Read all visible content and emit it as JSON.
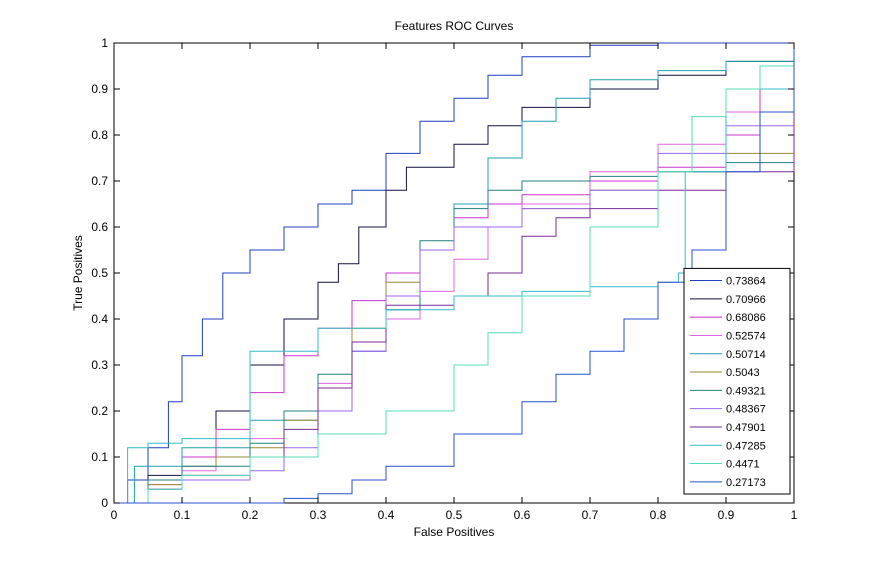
{
  "chart_data": {
    "type": "line",
    "title": "Features ROC Curves",
    "xlabel": "False Positives",
    "ylabel": "True Positives",
    "xlim": [
      0,
      1
    ],
    "ylim": [
      0,
      1
    ],
    "xticks": [
      "0",
      "0.1",
      "0.2",
      "0.3",
      "0.4",
      "0.5",
      "0.6",
      "0.7",
      "0.8",
      "0.9",
      "1"
    ],
    "yticks": [
      "0",
      "0.1",
      "0.2",
      "0.3",
      "0.4",
      "0.5",
      "0.6",
      "0.7",
      "0.8",
      "0.9",
      "1"
    ],
    "grid": false,
    "legend_position": "lower-right",
    "series": [
      {
        "name": "0.73864",
        "color": "#1f3fbf",
        "points": [
          [
            0,
            0
          ],
          [
            0.02,
            0.05
          ],
          [
            0.05,
            0.12
          ],
          [
            0.08,
            0.22
          ],
          [
            0.1,
            0.32
          ],
          [
            0.13,
            0.4
          ],
          [
            0.16,
            0.5
          ],
          [
            0.2,
            0.55
          ],
          [
            0.25,
            0.6
          ],
          [
            0.3,
            0.65
          ],
          [
            0.35,
            0.68
          ],
          [
            0.4,
            0.76
          ],
          [
            0.45,
            0.83
          ],
          [
            0.5,
            0.88
          ],
          [
            0.55,
            0.93
          ],
          [
            0.6,
            0.97
          ],
          [
            0.7,
            0.995
          ],
          [
            0.8,
            1
          ],
          [
            1,
            1
          ]
        ]
      },
      {
        "name": "0.70966",
        "color": "#101040",
        "points": [
          [
            0,
            0
          ],
          [
            0.05,
            0.06
          ],
          [
            0.1,
            0.1
          ],
          [
            0.15,
            0.2
          ],
          [
            0.2,
            0.3
          ],
          [
            0.25,
            0.4
          ],
          [
            0.3,
            0.48
          ],
          [
            0.33,
            0.52
          ],
          [
            0.36,
            0.6
          ],
          [
            0.4,
            0.68
          ],
          [
            0.43,
            0.73
          ],
          [
            0.5,
            0.78
          ],
          [
            0.55,
            0.82
          ],
          [
            0.6,
            0.86
          ],
          [
            0.7,
            0.9
          ],
          [
            0.8,
            0.93
          ],
          [
            0.9,
            0.96
          ],
          [
            1,
            1
          ]
        ]
      },
      {
        "name": "0.68086",
        "color": "#cc33cc",
        "points": [
          [
            0,
            0
          ],
          [
            0.05,
            0.05
          ],
          [
            0.1,
            0.1
          ],
          [
            0.15,
            0.16
          ],
          [
            0.2,
            0.24
          ],
          [
            0.25,
            0.32
          ],
          [
            0.3,
            0.38
          ],
          [
            0.35,
            0.44
          ],
          [
            0.4,
            0.5
          ],
          [
            0.45,
            0.55
          ],
          [
            0.5,
            0.62
          ],
          [
            0.55,
            0.65
          ],
          [
            0.6,
            0.67
          ],
          [
            0.7,
            0.7
          ],
          [
            0.8,
            0.73
          ],
          [
            0.9,
            0.8
          ],
          [
            0.95,
            0.9
          ],
          [
            1,
            1
          ]
        ]
      },
      {
        "name": "0.52574",
        "color": "#e066e0",
        "points": [
          [
            0,
            0
          ],
          [
            0.05,
            0.04
          ],
          [
            0.1,
            0.07
          ],
          [
            0.15,
            0.1
          ],
          [
            0.2,
            0.14
          ],
          [
            0.25,
            0.2
          ],
          [
            0.3,
            0.26
          ],
          [
            0.35,
            0.33
          ],
          [
            0.4,
            0.4
          ],
          [
            0.45,
            0.46
          ],
          [
            0.5,
            0.53
          ],
          [
            0.55,
            0.6
          ],
          [
            0.6,
            0.65
          ],
          [
            0.7,
            0.72
          ],
          [
            0.8,
            0.78
          ],
          [
            0.9,
            0.85
          ],
          [
            1,
            1
          ]
        ]
      },
      {
        "name": "0.50714",
        "color": "#20a0b0",
        "points": [
          [
            0,
            0
          ],
          [
            0.03,
            0.08
          ],
          [
            0.1,
            0.12
          ],
          [
            0.2,
            0.18
          ],
          [
            0.3,
            0.25
          ],
          [
            0.35,
            0.33
          ],
          [
            0.4,
            0.42
          ],
          [
            0.45,
            0.55
          ],
          [
            0.5,
            0.65
          ],
          [
            0.55,
            0.75
          ],
          [
            0.6,
            0.83
          ],
          [
            0.65,
            0.88
          ],
          [
            0.7,
            0.92
          ],
          [
            0.8,
            0.94
          ],
          [
            0.9,
            0.96
          ],
          [
            1,
            1
          ]
        ]
      },
      {
        "name": "0.5043",
        "color": "#998833",
        "points": [
          [
            0,
            0
          ],
          [
            0.05,
            0.04
          ],
          [
            0.1,
            0.08
          ],
          [
            0.15,
            0.1
          ],
          [
            0.2,
            0.12
          ],
          [
            0.25,
            0.18
          ],
          [
            0.3,
            0.25
          ],
          [
            0.35,
            0.38
          ],
          [
            0.4,
            0.48
          ],
          [
            0.45,
            0.55
          ],
          [
            0.5,
            0.6
          ],
          [
            0.6,
            0.64
          ],
          [
            0.7,
            0.68
          ],
          [
            0.8,
            0.72
          ],
          [
            0.9,
            0.76
          ],
          [
            1,
            1
          ]
        ]
      },
      {
        "name": "0.49321",
        "color": "#208080",
        "points": [
          [
            0,
            0
          ],
          [
            0.05,
            0.05
          ],
          [
            0.1,
            0.08
          ],
          [
            0.2,
            0.13
          ],
          [
            0.25,
            0.2
          ],
          [
            0.3,
            0.28
          ],
          [
            0.35,
            0.35
          ],
          [
            0.4,
            0.42
          ],
          [
            0.45,
            0.57
          ],
          [
            0.5,
            0.64
          ],
          [
            0.55,
            0.68
          ],
          [
            0.6,
            0.7
          ],
          [
            0.7,
            0.71
          ],
          [
            0.8,
            0.72
          ],
          [
            0.9,
            0.74
          ],
          [
            1,
            1
          ]
        ]
      },
      {
        "name": "0.48367",
        "color": "#9966ee",
        "points": [
          [
            0,
            0
          ],
          [
            0.05,
            0.03
          ],
          [
            0.1,
            0.05
          ],
          [
            0.2,
            0.07
          ],
          [
            0.25,
            0.12
          ],
          [
            0.3,
            0.2
          ],
          [
            0.35,
            0.33
          ],
          [
            0.4,
            0.45
          ],
          [
            0.45,
            0.55
          ],
          [
            0.5,
            0.6
          ],
          [
            0.6,
            0.64
          ],
          [
            0.7,
            0.68
          ],
          [
            0.8,
            0.76
          ],
          [
            0.9,
            0.82
          ],
          [
            1,
            1
          ]
        ]
      },
      {
        "name": "0.47901",
        "color": "#7a2a9a",
        "points": [
          [
            0,
            0
          ],
          [
            0.05,
            0.03
          ],
          [
            0.1,
            0.06
          ],
          [
            0.2,
            0.1
          ],
          [
            0.25,
            0.16
          ],
          [
            0.3,
            0.25
          ],
          [
            0.35,
            0.35
          ],
          [
            0.4,
            0.43
          ],
          [
            0.5,
            0.45
          ],
          [
            0.55,
            0.5
          ],
          [
            0.6,
            0.58
          ],
          [
            0.65,
            0.62
          ],
          [
            0.7,
            0.64
          ],
          [
            0.8,
            0.68
          ],
          [
            0.9,
            0.72
          ],
          [
            1,
            1
          ]
        ]
      },
      {
        "name": "0.47285",
        "color": "#33bbcc",
        "points": [
          [
            0,
            0
          ],
          [
            0.02,
            0.12
          ],
          [
            0.05,
            0.13
          ],
          [
            0.1,
            0.14
          ],
          [
            0.2,
            0.33
          ],
          [
            0.3,
            0.38
          ],
          [
            0.4,
            0.42
          ],
          [
            0.5,
            0.45
          ],
          [
            0.6,
            0.46
          ],
          [
            0.7,
            0.47
          ],
          [
            0.8,
            0.48
          ],
          [
            0.83,
            0.5
          ],
          [
            0.84,
            0.72
          ],
          [
            0.9,
            0.9
          ],
          [
            1,
            1
          ]
        ]
      },
      {
        "name": "0.4471",
        "color": "#55ddbb",
        "points": [
          [
            0,
            0
          ],
          [
            0.05,
            0.03
          ],
          [
            0.1,
            0.06
          ],
          [
            0.2,
            0.1
          ],
          [
            0.3,
            0.15
          ],
          [
            0.4,
            0.2
          ],
          [
            0.5,
            0.3
          ],
          [
            0.55,
            0.37
          ],
          [
            0.6,
            0.45
          ],
          [
            0.7,
            0.6
          ],
          [
            0.8,
            0.72
          ],
          [
            0.85,
            0.84
          ],
          [
            0.9,
            0.9
          ],
          [
            0.95,
            0.95
          ],
          [
            1,
            1
          ]
        ]
      },
      {
        "name": "0.27173",
        "color": "#2850d0",
        "points": [
          [
            0,
            0
          ],
          [
            0.1,
            0
          ],
          [
            0.2,
            0
          ],
          [
            0.25,
            0.01
          ],
          [
            0.3,
            0.02
          ],
          [
            0.35,
            0.05
          ],
          [
            0.4,
            0.08
          ],
          [
            0.5,
            0.15
          ],
          [
            0.6,
            0.22
          ],
          [
            0.65,
            0.28
          ],
          [
            0.7,
            0.33
          ],
          [
            0.75,
            0.4
          ],
          [
            0.8,
            0.48
          ],
          [
            0.85,
            0.55
          ],
          [
            0.9,
            0.72
          ],
          [
            0.95,
            0.85
          ],
          [
            1,
            1
          ]
        ]
      }
    ]
  }
}
